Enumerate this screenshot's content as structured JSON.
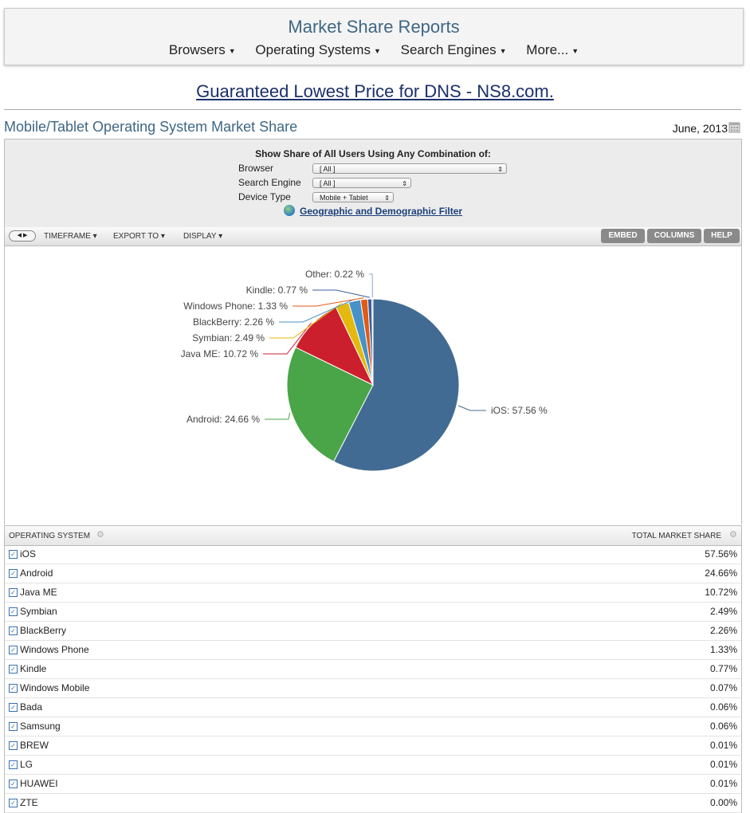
{
  "header": {
    "site_title": "Market Share Reports",
    "nav": [
      "Browsers",
      "Operating Systems",
      "Search Engines",
      "More..."
    ]
  },
  "ad_text": "Guaranteed Lowest Price for DNS - NS8.com.",
  "page": {
    "title": "Mobile/Tablet Operating System Market Share",
    "date": "June, 2013"
  },
  "filters": {
    "heading": "Show Share of All Users Using Any Combination of:",
    "browser_label": "Browser",
    "browser_value": "[ All ]",
    "search_label": "Search Engine",
    "search_value": "[ All ]",
    "device_label": "Device Type",
    "device_value": "Mobile + Tablet",
    "geo_link": "Geographic and Demographic Filter"
  },
  "toolbar": {
    "timeframe": "TIMEFRAME",
    "export": "EXPORT TO",
    "display": "DISPLAY",
    "embed": "EMBED",
    "columns": "COLUMNS",
    "help": "HELP"
  },
  "table": {
    "col_left": "OPERATING SYSTEM",
    "col_right": "TOTAL MARKET SHARE",
    "rows": [
      {
        "name": "iOS",
        "share": "57.56%"
      },
      {
        "name": "Android",
        "share": "24.66%"
      },
      {
        "name": "Java ME",
        "share": "10.72%"
      },
      {
        "name": "Symbian",
        "share": "2.49%"
      },
      {
        "name": "BlackBerry",
        "share": "2.26%"
      },
      {
        "name": "Windows Phone",
        "share": "1.33%"
      },
      {
        "name": "Kindle",
        "share": "0.77%"
      },
      {
        "name": "Windows Mobile",
        "share": "0.07%"
      },
      {
        "name": "Bada",
        "share": "0.06%"
      },
      {
        "name": "Samsung",
        "share": "0.06%"
      },
      {
        "name": "BREW",
        "share": "0.01%"
      },
      {
        "name": "LG",
        "share": "0.01%"
      },
      {
        "name": "HUAWEI",
        "share": "0.01%"
      },
      {
        "name": "ZTE",
        "share": "0.00%"
      }
    ]
  },
  "chart_data": {
    "type": "pie",
    "categories": [
      "iOS",
      "Android",
      "Java ME",
      "Symbian",
      "BlackBerry",
      "Windows Phone",
      "Kindle",
      "Other"
    ],
    "values": [
      57.56,
      24.66,
      10.72,
      2.49,
      2.26,
      1.33,
      0.77,
      0.22
    ],
    "labels": [
      "iOS: 57.56 %",
      "Android: 24.66 %",
      "Java ME: 10.72 %",
      "Symbian: 2.49 %",
      "BlackBerry: 2.26 %",
      "Windows Phone: 1.33 %",
      "Kindle: 0.77 %",
      "Other: 0.22 %"
    ],
    "colors": [
      "#426b93",
      "#49a547",
      "#cc1f2e",
      "#e4b90f",
      "#4592c9",
      "#e05a18",
      "#3a5d9a",
      "#8aa9d0"
    ]
  }
}
